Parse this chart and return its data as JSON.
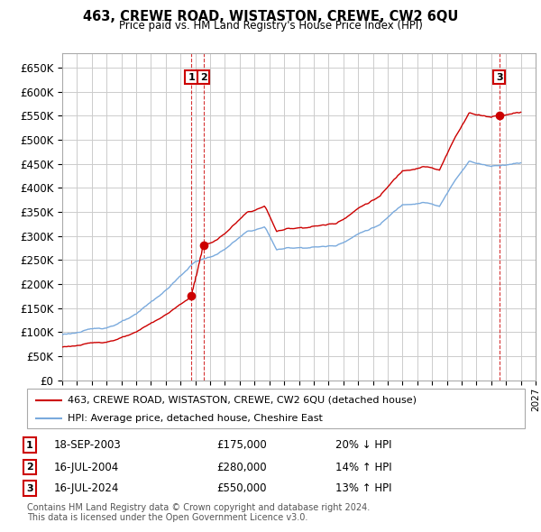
{
  "title": "463, CREWE ROAD, WISTASTON, CREWE, CW2 6QU",
  "subtitle": "Price paid vs. HM Land Registry's House Price Index (HPI)",
  "ylim": [
    0,
    680000
  ],
  "yticks": [
    0,
    50000,
    100000,
    150000,
    200000,
    250000,
    300000,
    350000,
    400000,
    450000,
    500000,
    550000,
    600000,
    650000
  ],
  "ytick_labels": [
    "£0",
    "£50K",
    "£100K",
    "£150K",
    "£200K",
    "£250K",
    "£300K",
    "£350K",
    "£400K",
    "£450K",
    "£500K",
    "£550K",
    "£600K",
    "£650K"
  ],
  "sale_color": "#cc0000",
  "hpi_color": "#7aaadd",
  "transaction_color": "#cc0000",
  "transactions": [
    {
      "num": 1,
      "date": "18-SEP-2003",
      "price": 175000,
      "hpi_diff": "20% ↓ HPI",
      "year": 2003.72
    },
    {
      "num": 2,
      "date": "16-JUL-2004",
      "price": 280000,
      "hpi_diff": "14% ↑ HPI",
      "year": 2004.54
    },
    {
      "num": 3,
      "date": "16-JUL-2024",
      "price": 550000,
      "hpi_diff": "13% ↑ HPI",
      "year": 2024.54
    }
  ],
  "legend_sale_label": "463, CREWE ROAD, WISTASTON, CREWE, CW2 6QU (detached house)",
  "legend_hpi_label": "HPI: Average price, detached house, Cheshire East",
  "footnote1": "Contains HM Land Registry data © Crown copyright and database right 2024.",
  "footnote2": "This data is licensed under the Open Government Licence v3.0.",
  "background_color": "#ffffff",
  "plot_bg_color": "#ffffff",
  "grid_color": "#cccccc"
}
